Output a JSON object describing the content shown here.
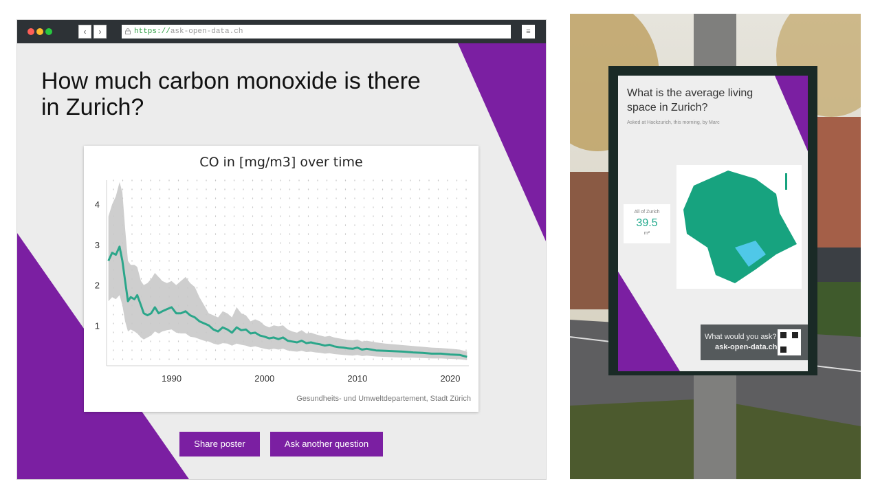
{
  "browser": {
    "url_scheme": "https://",
    "url_host": "ask-open-data.ch",
    "back_glyph": "‹",
    "forward_glyph": "›",
    "menu_glyph": "≡"
  },
  "page": {
    "question": "How much carbon monoxide is there in Zurich?",
    "source": "Gesundheits- und Umweltdepartement, Stadt Zürich",
    "buttons": {
      "share": "Share poster",
      "ask": "Ask another question"
    },
    "colors": {
      "accent": "#7b1fa2",
      "line": "#2ba68a",
      "band": "#c9c9c9"
    }
  },
  "chart_data": {
    "type": "line",
    "title": "CO in [mg/m3] over time",
    "xlabel": "",
    "ylabel": "",
    "xlim": [
      1983,
      2022
    ],
    "ylim": [
      0,
      4.6
    ],
    "x_ticks": [
      1990,
      2000,
      2010,
      2020
    ],
    "y_ticks": [
      1,
      2,
      3,
      4
    ],
    "grid": "dotted",
    "series": [
      {
        "x": [
          1983.2,
          1983.6,
          1984.0,
          1984.4,
          1984.7,
          1985.0,
          1985.3,
          1985.6,
          1986.0,
          1986.3,
          1986.7,
          1987.0,
          1987.4,
          1987.8,
          1988.2,
          1988.6,
          1989.0,
          1989.5,
          1990.0,
          1990.5,
          1991.0,
          1991.5,
          1992.0,
          1992.5,
          1993.0,
          1993.5,
          1994.0,
          1994.5,
          1995.0,
          1995.5,
          1996.0,
          1996.5,
          1997.0,
          1997.5,
          1998.0,
          1998.5,
          1999.0,
          1999.5,
          2000.0,
          2000.5,
          2001.0,
          2001.5,
          2002.0,
          2002.5,
          2003.0,
          2003.5,
          2004.0,
          2004.5,
          2005.0,
          2005.5,
          2006.0,
          2006.5,
          2007.0,
          2007.5,
          2008.0,
          2008.5,
          2009.0,
          2009.5,
          2010.0,
          2010.5,
          2011.0,
          2011.5,
          2012.0,
          2013.0,
          2014.0,
          2015.0,
          2016.0,
          2017.0,
          2018.0,
          2019.0,
          2020.0,
          2021.0,
          2021.8
        ],
        "y": [
          2.6,
          2.8,
          2.75,
          2.95,
          2.6,
          2.1,
          1.6,
          1.7,
          1.65,
          1.75,
          1.5,
          1.3,
          1.25,
          1.3,
          1.45,
          1.3,
          1.35,
          1.4,
          1.45,
          1.3,
          1.3,
          1.35,
          1.25,
          1.2,
          1.1,
          1.05,
          1.0,
          0.9,
          0.85,
          0.95,
          0.9,
          0.82,
          0.95,
          0.88,
          0.9,
          0.8,
          0.82,
          0.75,
          0.72,
          0.68,
          0.7,
          0.66,
          0.7,
          0.62,
          0.6,
          0.58,
          0.62,
          0.56,
          0.58,
          0.55,
          0.53,
          0.5,
          0.52,
          0.48,
          0.46,
          0.45,
          0.43,
          0.42,
          0.45,
          0.4,
          0.42,
          0.4,
          0.38,
          0.37,
          0.36,
          0.35,
          0.33,
          0.32,
          0.3,
          0.3,
          0.28,
          0.27,
          0.22
        ],
        "upper": [
          3.7,
          4.0,
          4.2,
          4.55,
          4.3,
          3.4,
          2.6,
          2.5,
          2.5,
          2.45,
          2.1,
          2.0,
          2.05,
          2.15,
          2.3,
          2.2,
          2.1,
          2.05,
          2.1,
          2.0,
          2.1,
          2.2,
          2.05,
          1.95,
          1.7,
          1.5,
          1.3,
          1.25,
          1.2,
          1.35,
          1.3,
          1.2,
          1.45,
          1.3,
          1.25,
          1.1,
          1.15,
          1.1,
          1.0,
          0.95,
          1.0,
          0.98,
          1.0,
          0.9,
          0.85,
          0.82,
          0.88,
          0.8,
          0.82,
          0.78,
          0.75,
          0.72,
          0.74,
          0.7,
          0.68,
          0.66,
          0.64,
          0.63,
          0.65,
          0.6,
          0.62,
          0.6,
          0.58,
          0.55,
          0.53,
          0.51,
          0.49,
          0.47,
          0.45,
          0.44,
          0.42,
          0.4,
          0.35
        ],
        "lower": [
          1.6,
          1.7,
          1.65,
          1.75,
          1.5,
          1.1,
          0.85,
          0.9,
          0.85,
          0.8,
          0.7,
          0.65,
          0.7,
          0.75,
          0.85,
          0.8,
          0.85,
          0.88,
          0.9,
          0.82,
          0.8,
          0.8,
          0.72,
          0.7,
          0.66,
          0.62,
          0.6,
          0.55,
          0.52,
          0.56,
          0.55,
          0.5,
          0.55,
          0.52,
          0.5,
          0.46,
          0.48,
          0.45,
          0.42,
          0.4,
          0.42,
          0.4,
          0.42,
          0.38,
          0.36,
          0.35,
          0.37,
          0.34,
          0.35,
          0.33,
          0.32,
          0.3,
          0.31,
          0.29,
          0.28,
          0.27,
          0.26,
          0.25,
          0.27,
          0.24,
          0.25,
          0.24,
          0.23,
          0.22,
          0.21,
          0.2,
          0.2,
          0.19,
          0.18,
          0.18,
          0.17,
          0.16,
          0.14
        ]
      }
    ]
  },
  "photo_poster": {
    "title": "What is the average living space in Zurich?",
    "subtitle": "Asked at Hackzurich, this morning, by Marc",
    "stat_label": "All of Zurich",
    "stat_value": "39.5",
    "stat_unit": "m²",
    "cta_line1": "What would you ask?",
    "cta_line2": "ask-open-data.ch"
  }
}
